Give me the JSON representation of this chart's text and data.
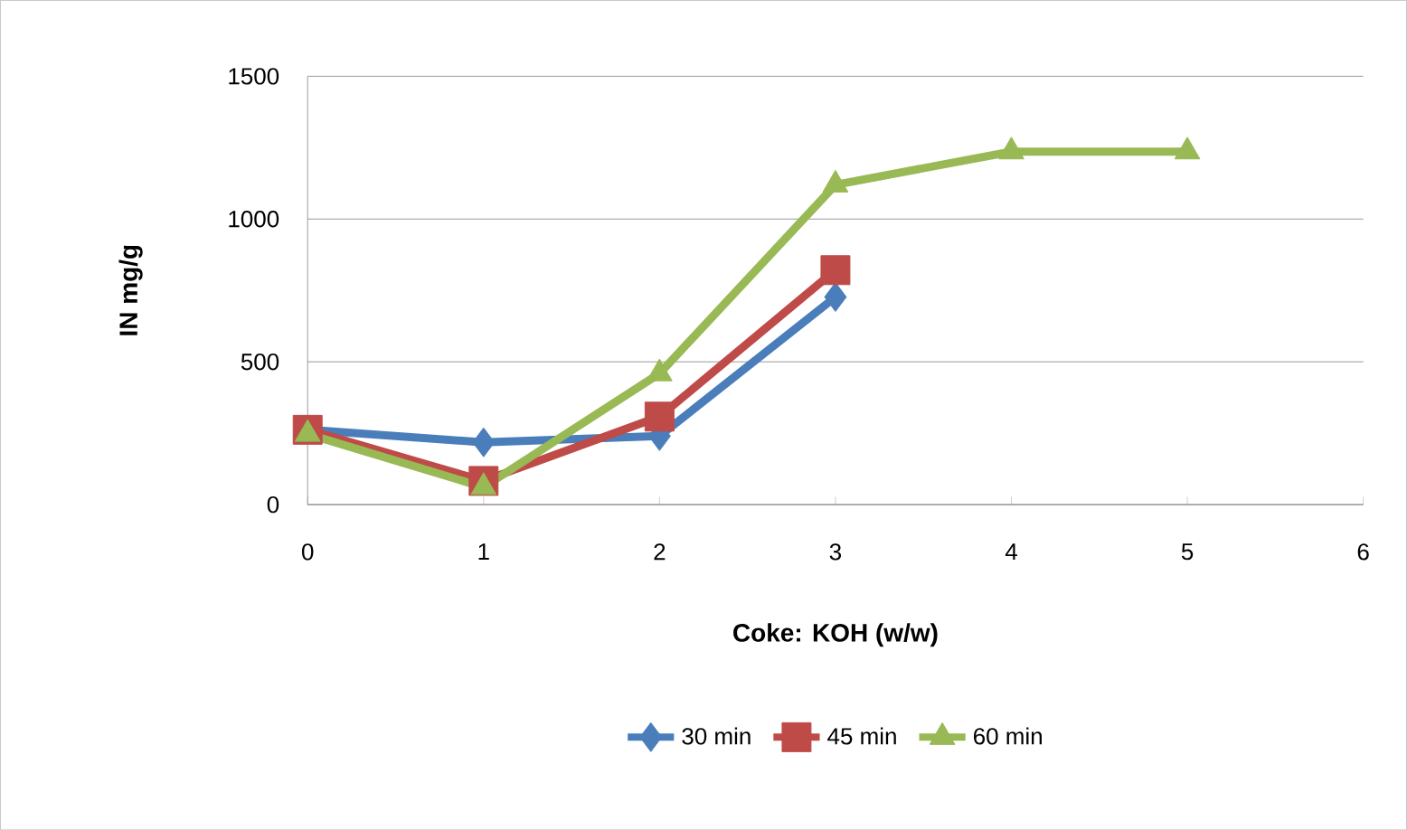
{
  "chart_data": {
    "type": "line",
    "xlabel": "Coke: KOH (w/w)",
    "ylabel": "IN mg/g",
    "xlim": [
      0,
      6
    ],
    "xticks": [
      0,
      1,
      2,
      3,
      4,
      5,
      6
    ],
    "ylim": [
      0,
      1500
    ],
    "yticks": [
      0,
      500,
      1000,
      1500
    ],
    "grid": "y",
    "legend": "bottom",
    "series": [
      {
        "name": "30 min",
        "color": "#4a7ebb",
        "marker": "diamond",
        "x": [
          0,
          1,
          2,
          3
        ],
        "values": [
          262,
          218,
          240,
          727
        ]
      },
      {
        "name": "45 min",
        "color": "#be4b48",
        "marker": "square",
        "x": [
          0,
          1,
          2,
          3
        ],
        "values": [
          262,
          83,
          308,
          821
        ]
      },
      {
        "name": "60 min",
        "color": "#98b954",
        "marker": "triangle",
        "x": [
          0,
          1,
          2,
          3,
          4,
          5
        ],
        "values": [
          247,
          61,
          459,
          1120,
          1236,
          1236
        ]
      }
    ]
  }
}
